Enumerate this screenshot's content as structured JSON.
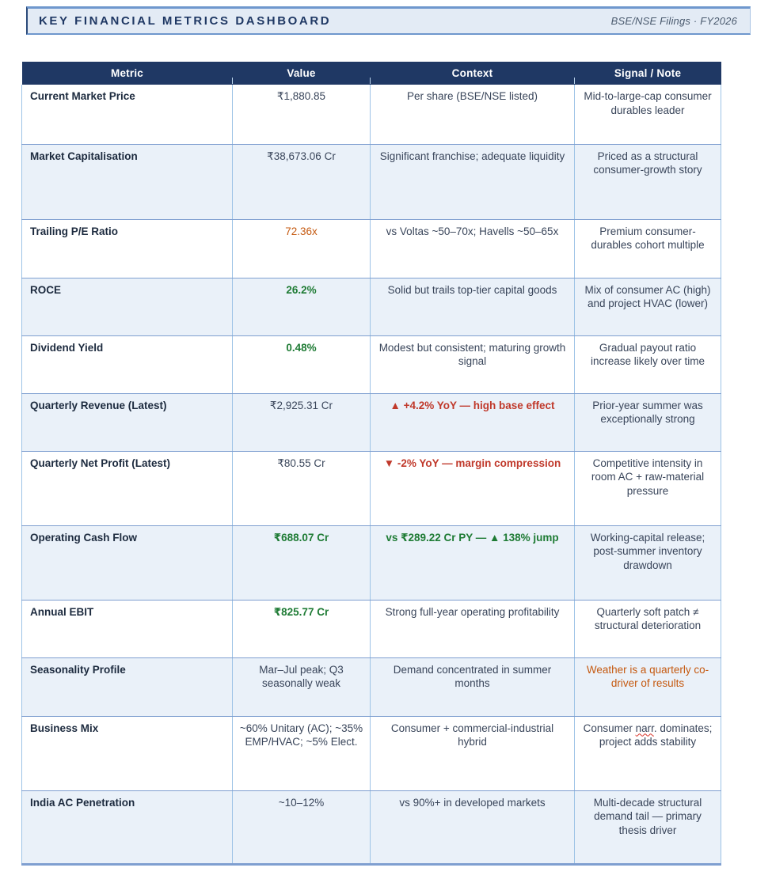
{
  "header": {
    "title": "KEY FINANCIAL METRICS DASHBOARD",
    "subtitle": "BSE/NSE Filings · FY2026"
  },
  "table": {
    "columns": [
      "Metric",
      "Value",
      "Context",
      "Signal / Note"
    ],
    "rows": [
      {
        "metric": "Current Market Price",
        "value": "₹1,880.85",
        "value_style": "plain",
        "context": "Per share (BSE/NSE listed)",
        "context_style": "plain",
        "signal": "Mid-to-large-cap consumer durables leader",
        "signal_style": "plain"
      },
      {
        "metric": "Market Capitalisation",
        "value": "₹38,673.06 Cr",
        "value_style": "plain",
        "context": "Significant franchise; adequate liquidity",
        "context_style": "plain",
        "signal": "Priced as a structural consumer-growth story",
        "signal_style": "plain"
      },
      {
        "metric": "Trailing P/E Ratio",
        "value": "72.36x",
        "value_style": "orange",
        "context": "vs Voltas ~50–70x; Havells ~50–65x",
        "context_style": "plain",
        "signal": "Premium consumer-durables cohort multiple",
        "signal_style": "plain"
      },
      {
        "metric": "ROCE",
        "value": "26.2%",
        "value_style": "green",
        "context": "Solid but trails top-tier capital goods",
        "context_style": "plain",
        "signal": "Mix of consumer AC (high) and project HVAC (lower)",
        "signal_style": "plain"
      },
      {
        "metric": "Dividend Yield",
        "value": "0.48%",
        "value_style": "green",
        "context": "Modest but consistent; maturing growth signal",
        "context_style": "plain",
        "signal": "Gradual payout ratio increase likely over time",
        "signal_style": "plain"
      },
      {
        "metric": "Quarterly Revenue (Latest)",
        "value": "₹2,925.31 Cr",
        "value_style": "plain",
        "context": "▲ +4.2% YoY — high base effect",
        "context_style": "red",
        "signal": "Prior-year summer was exceptionally strong",
        "signal_style": "plain"
      },
      {
        "metric": "Quarterly Net Profit (Latest)",
        "value": "₹80.55 Cr",
        "value_style": "plain",
        "context": "▼ -2% YoY — margin compression",
        "context_style": "red",
        "signal": "Competitive intensity in room AC + raw-material pressure",
        "signal_style": "plain"
      },
      {
        "metric": "Operating Cash Flow",
        "value": "₹688.07 Cr",
        "value_style": "green",
        "context": "vs ₹289.22 Cr PY — ▲ 138% jump",
        "context_style": "green",
        "signal": "Working-capital release; post-summer inventory drawdown",
        "signal_style": "plain"
      },
      {
        "metric": "Annual EBIT",
        "value": "₹825.77 Cr",
        "value_style": "green",
        "context": "Strong full-year operating profitability",
        "context_style": "plain",
        "signal": "Quarterly soft patch ≠ structural deterioration",
        "signal_style": "plain"
      },
      {
        "metric": "Seasonality Profile",
        "value": "Mar–Jul peak; Q3 seasonally weak",
        "value_style": "plain",
        "context": "Demand concentrated in summer months",
        "context_style": "plain",
        "signal": "Weather is a quarterly co-driver of results",
        "signal_style": "orange"
      },
      {
        "metric": "Business Mix",
        "value": "~60% Unitary (AC); ~35% EMP/HVAC; ~5% Elect.",
        "value_style": "plain",
        "context": "Consumer + commercial-industrial hybrid",
        "context_style": "plain",
        "signal": "Consumer narr. dominates; project adds stability",
        "signal_style": "plain",
        "signal_squiggle": "narr"
      },
      {
        "metric": "India AC Penetration",
        "value": "~10–12%",
        "value_style": "plain",
        "context": "vs 90%+ in developed markets",
        "context_style": "plain",
        "signal": "Multi-decade structural demand tail — primary thesis driver",
        "signal_style": "plain"
      }
    ]
  },
  "colors": {
    "header_navy": "#1F3864",
    "band_fill": "#E3EBF5",
    "band_border": "#6E97CD",
    "alt_row": "#EAF1F9",
    "border_vertical": "#9DC3E6",
    "border_horizontal": "#7F9FD0",
    "positive_green": "#1E7B34",
    "caution_orange": "#C55A11",
    "negative_red": "#C0392B",
    "spellcheck_red": "#D93025"
  }
}
